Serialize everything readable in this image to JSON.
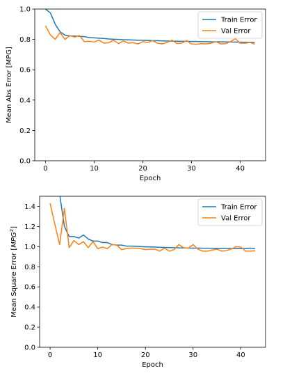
{
  "chart_data": [
    {
      "type": "line",
      "xlabel": "Epoch",
      "ylabel": "Mean Abs Error [MPG]",
      "xlim": [
        -2.2,
        45.2
      ],
      "ylim": [
        0,
        1.0
      ],
      "xticks": [
        0,
        10,
        20,
        30,
        40
      ],
      "yticks": [
        0.0,
        0.2,
        0.4,
        0.6,
        0.8,
        1.0
      ],
      "ytick_labels": [
        "0.0",
        "0.2",
        "0.4",
        "0.6",
        "0.8",
        "1.0"
      ],
      "grid": false,
      "legend": "top-right",
      "series": [
        {
          "name": "Train Error",
          "color": "#1f77b4",
          "x": [
            0,
            1,
            2,
            3,
            4,
            5,
            6,
            7,
            8,
            9,
            10,
            11,
            12,
            13,
            14,
            15,
            16,
            17,
            18,
            19,
            20,
            21,
            22,
            23,
            24,
            25,
            26,
            27,
            28,
            29,
            30,
            31,
            32,
            33,
            34,
            35,
            36,
            37,
            38,
            39,
            40,
            41,
            42,
            43
          ],
          "values": [
            1.0,
            0.975,
            0.9,
            0.85,
            0.828,
            0.823,
            0.822,
            0.82,
            0.818,
            0.812,
            0.81,
            0.808,
            0.806,
            0.803,
            0.801,
            0.8,
            0.798,
            0.797,
            0.796,
            0.795,
            0.794,
            0.793,
            0.792,
            0.791,
            0.79,
            0.789,
            0.789,
            0.788,
            0.787,
            0.787,
            0.786,
            0.786,
            0.785,
            0.785,
            0.784,
            0.784,
            0.784,
            0.783,
            0.783,
            0.782,
            0.782,
            0.781,
            0.781,
            0.78
          ]
        },
        {
          "name": "Val Error",
          "color": "#ff7f0e",
          "x": [
            0,
            1,
            2,
            3,
            4,
            5,
            6,
            7,
            8,
            9,
            10,
            11,
            12,
            13,
            14,
            15,
            16,
            17,
            18,
            19,
            20,
            21,
            22,
            23,
            24,
            25,
            26,
            27,
            28,
            29,
            30,
            31,
            32,
            33,
            34,
            35,
            36,
            37,
            38,
            39,
            40,
            41,
            42,
            43
          ],
          "values": [
            0.89,
            0.83,
            0.8,
            0.845,
            0.8,
            0.825,
            0.815,
            0.825,
            0.785,
            0.788,
            0.783,
            0.795,
            0.775,
            0.778,
            0.795,
            0.772,
            0.79,
            0.775,
            0.778,
            0.77,
            0.785,
            0.78,
            0.792,
            0.775,
            0.77,
            0.78,
            0.795,
            0.773,
            0.775,
            0.792,
            0.77,
            0.768,
            0.772,
            0.77,
            0.775,
            0.785,
            0.77,
            0.772,
            0.785,
            0.805,
            0.775,
            0.775,
            0.78,
            0.768
          ]
        }
      ]
    },
    {
      "type": "line",
      "xlabel": "Epoch",
      "ylabel": "Mean Square Error [$MPG^2$]",
      "ylabel_main": "Mean Square Error [",
      "ylabel_italic": "MPG",
      "ylabel_sup": "2",
      "ylabel_end": "]",
      "xlim": [
        -2.2,
        45.2
      ],
      "ylim": [
        0,
        1.5
      ],
      "xticks": [
        0,
        10,
        20,
        30,
        40
      ],
      "yticks": [
        0.0,
        0.2,
        0.4,
        0.6,
        0.8,
        1.0,
        1.2,
        1.4
      ],
      "ytick_labels": [
        "0.0",
        "0.2",
        "0.4",
        "0.6",
        "0.8",
        "1.0",
        "1.2",
        "1.4"
      ],
      "grid": false,
      "legend": "top-right",
      "series": [
        {
          "name": "Train Error",
          "color": "#1f77b4",
          "x": [
            2,
            3,
            4,
            5,
            6,
            7,
            8,
            9,
            10,
            11,
            12,
            13,
            14,
            15,
            16,
            17,
            18,
            19,
            20,
            21,
            22,
            23,
            24,
            25,
            26,
            27,
            28,
            29,
            30,
            31,
            32,
            33,
            34,
            35,
            36,
            37,
            38,
            39,
            40,
            41,
            42,
            43
          ],
          "values": [
            1.52,
            1.2,
            1.1,
            1.1,
            1.085,
            1.115,
            1.075,
            1.055,
            1.055,
            1.04,
            1.04,
            1.02,
            1.015,
            1.015,
            1.005,
            1.005,
            1.003,
            1.0,
            0.998,
            0.997,
            0.995,
            0.993,
            0.992,
            0.99,
            0.989,
            0.988,
            0.987,
            0.986,
            0.985,
            0.985,
            0.984,
            0.984,
            0.983,
            0.983,
            0.982,
            0.982,
            0.981,
            0.981,
            0.98,
            0.98,
            0.985,
            0.98
          ]
        },
        {
          "name": "Val Error",
          "color": "#ff7f0e",
          "x": [
            0,
            1,
            2,
            3,
            4,
            5,
            6,
            7,
            8,
            9,
            10,
            11,
            12,
            13,
            14,
            15,
            16,
            17,
            18,
            19,
            20,
            21,
            22,
            23,
            24,
            25,
            26,
            27,
            28,
            29,
            30,
            31,
            32,
            33,
            34,
            35,
            36,
            37,
            38,
            39,
            40,
            41,
            42,
            43
          ],
          "values": [
            1.43,
            1.22,
            1.02,
            1.38,
            0.99,
            1.06,
            1.02,
            1.05,
            0.99,
            1.05,
            0.98,
            0.995,
            0.98,
            1.02,
            1.015,
            0.97,
            0.98,
            0.985,
            0.985,
            0.98,
            0.97,
            0.975,
            0.975,
            0.955,
            0.985,
            0.955,
            0.97,
            1.02,
            0.99,
            0.985,
            1.02,
            0.975,
            0.955,
            0.955,
            0.965,
            0.975,
            0.955,
            0.96,
            0.975,
            1.0,
            0.995,
            0.955,
            0.955,
            0.96
          ]
        }
      ]
    }
  ]
}
